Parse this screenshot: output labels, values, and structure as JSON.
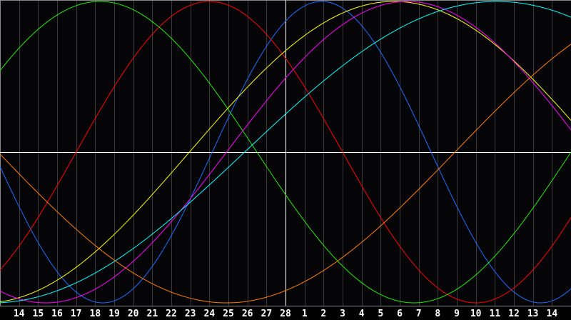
{
  "chart_data": {
    "type": "line",
    "title": "",
    "xlabel": "",
    "ylabel": "",
    "x_tick_labels": [
      "14",
      "15",
      "16",
      "17",
      "18",
      "19",
      "20",
      "21",
      "22",
      "23",
      "24",
      "25",
      "26",
      "27",
      "28",
      "1",
      "2",
      "3",
      "4",
      "5",
      "6",
      "7",
      "8",
      "9",
      "10",
      "11",
      "12",
      "13",
      "14"
    ],
    "today_index": 14,
    "ylim": [
      -1,
      1
    ],
    "grid": true,
    "legend": "none",
    "background": "#050508",
    "grid_color": "#3a3a3a",
    "axis_color": "#ffffff",
    "series": [
      {
        "color": "#1e6eff",
        "period_days": 23,
        "peak_index": 15.9
      },
      {
        "color": "#ff0000",
        "period_days": 28,
        "peak_index": 10.0
      },
      {
        "color": "#22ee00",
        "period_days": 33,
        "peak_index": 4.25
      },
      {
        "color": "#ffff00",
        "period_days": 43,
        "peak_index": 19.7
      },
      {
        "color": "#ff00ff",
        "period_days": 38,
        "peak_index": 20.4
      },
      {
        "color": "#00ffff",
        "period_days": 53,
        "peak_index": 25.1
      },
      {
        "color": "#ff8000",
        "period_days": 48,
        "peak_index": 34.9
      }
    ]
  }
}
